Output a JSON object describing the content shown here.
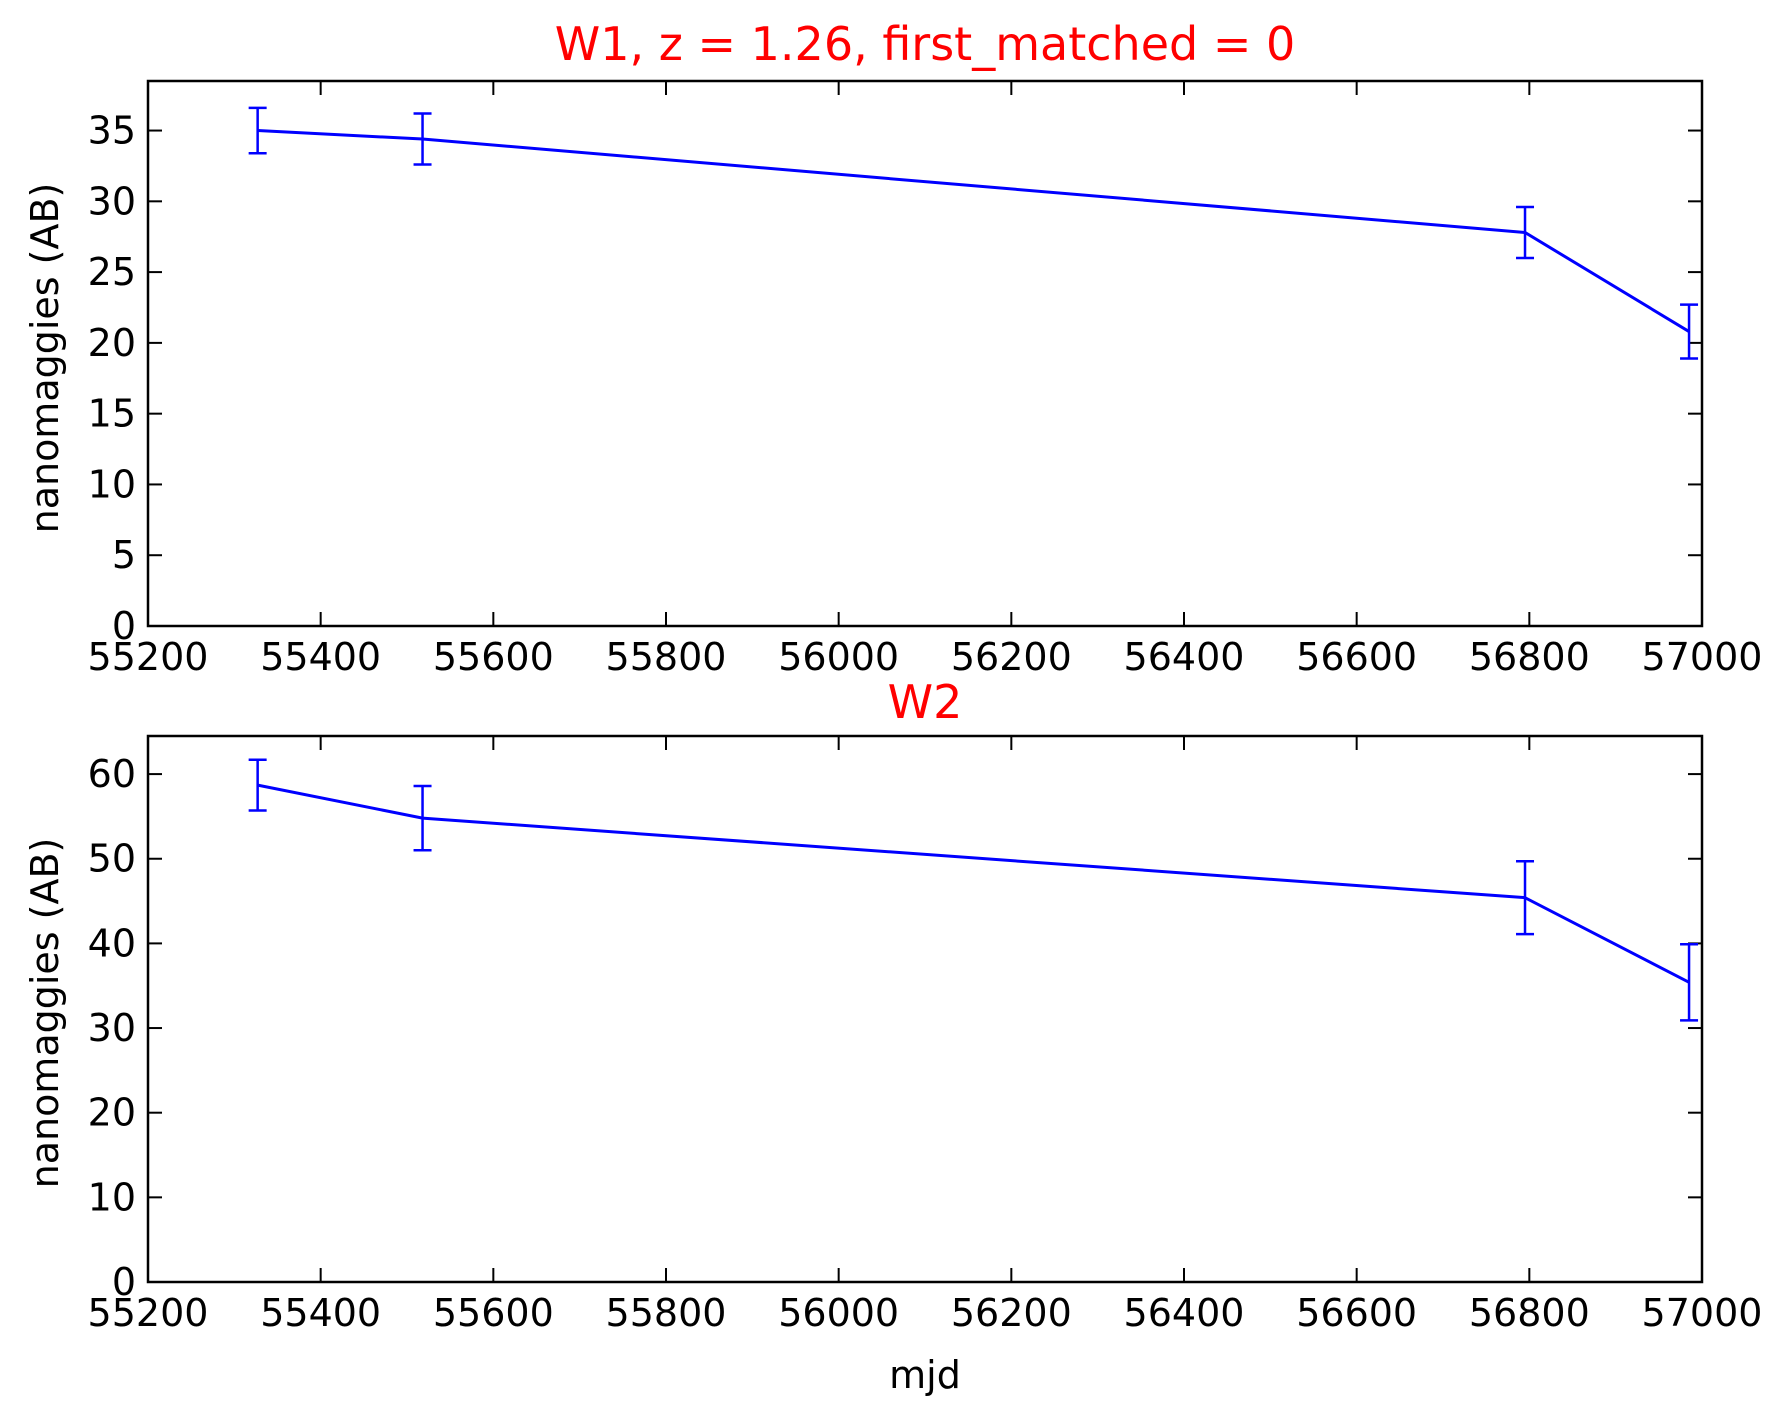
{
  "colors": {
    "series": "#0000ff",
    "title": "#ff0000",
    "axes": "#000000",
    "text": "#000000",
    "background": "#ffffff"
  },
  "chart_data": [
    {
      "type": "line",
      "title": "W1, z = 1.26, first_matched = 0",
      "xlabel": "",
      "ylabel": "nanomaggies (AB)",
      "xlim": [
        55200,
        57000
      ],
      "ylim": [
        0,
        38.5
      ],
      "xticks": [
        55200,
        55400,
        55600,
        55800,
        56000,
        56200,
        56400,
        56600,
        56800,
        57000
      ],
      "yticks": [
        0,
        5,
        10,
        15,
        20,
        25,
        30,
        35
      ],
      "grid": false,
      "error_bars": true,
      "series": [
        {
          "x": [
            55327,
            55518,
            56795,
            56985
          ],
          "y": [
            35.0,
            34.4,
            27.8,
            20.8
          ],
          "err": [
            1.6,
            1.8,
            1.8,
            1.9
          ]
        }
      ]
    },
    {
      "type": "line",
      "title": "W2",
      "xlabel": "mjd",
      "ylabel": "nanomaggies (AB)",
      "xlim": [
        55200,
        57000
      ],
      "ylim": [
        0,
        64.5
      ],
      "xticks": [
        55200,
        55400,
        55600,
        55800,
        56000,
        56200,
        56400,
        56600,
        56800,
        57000
      ],
      "yticks": [
        0,
        10,
        20,
        30,
        40,
        50,
        60
      ],
      "grid": false,
      "error_bars": true,
      "series": [
        {
          "x": [
            55327,
            55518,
            56795,
            56985
          ],
          "y": [
            58.7,
            54.8,
            45.4,
            35.4
          ],
          "err": [
            3.0,
            3.8,
            4.3,
            4.5
          ]
        }
      ]
    }
  ]
}
